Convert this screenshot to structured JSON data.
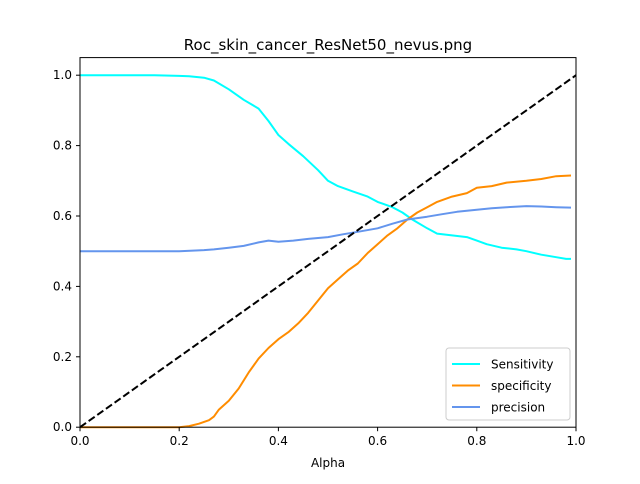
{
  "chart_data": {
    "type": "line",
    "title": "Roc_skin_cancer_ResNet50_nevus.png",
    "xlabel": "Alpha",
    "ylabel": "",
    "xlim": [
      0,
      1
    ],
    "ylim": [
      0,
      1.05
    ],
    "xticks": [
      "0.0",
      "0.2",
      "0.4",
      "0.6",
      "0.8",
      "1.0"
    ],
    "yticks": [
      "0.0",
      "0.2",
      "0.4",
      "0.6",
      "0.8",
      "1.0"
    ],
    "grid": false,
    "legend_position": "lower-right",
    "series": [
      {
        "name": "Sensitivity",
        "color": "#00ffff",
        "dashed": false,
        "x": [
          0.0,
          0.05,
          0.1,
          0.15,
          0.2,
          0.22,
          0.25,
          0.27,
          0.3,
          0.33,
          0.36,
          0.38,
          0.4,
          0.42,
          0.45,
          0.48,
          0.5,
          0.52,
          0.55,
          0.58,
          0.6,
          0.63,
          0.65,
          0.67,
          0.7,
          0.72,
          0.75,
          0.78,
          0.8,
          0.82,
          0.85,
          0.88,
          0.9,
          0.93,
          0.96,
          0.98,
          0.99
        ],
        "y": [
          1.0,
          1.0,
          1.0,
          1.0,
          0.998,
          0.997,
          0.993,
          0.985,
          0.96,
          0.93,
          0.905,
          0.87,
          0.83,
          0.805,
          0.77,
          0.73,
          0.7,
          0.685,
          0.67,
          0.655,
          0.64,
          0.625,
          0.61,
          0.59,
          0.565,
          0.55,
          0.545,
          0.54,
          0.53,
          0.52,
          0.51,
          0.505,
          0.5,
          0.49,
          0.483,
          0.478,
          0.478
        ]
      },
      {
        "name": "specificity",
        "color": "#ff8c00",
        "dashed": false,
        "x": [
          0.0,
          0.05,
          0.1,
          0.15,
          0.2,
          0.22,
          0.24,
          0.26,
          0.27,
          0.28,
          0.3,
          0.32,
          0.34,
          0.36,
          0.38,
          0.4,
          0.42,
          0.44,
          0.46,
          0.48,
          0.5,
          0.52,
          0.54,
          0.56,
          0.58,
          0.6,
          0.62,
          0.64,
          0.66,
          0.68,
          0.7,
          0.72,
          0.75,
          0.78,
          0.8,
          0.83,
          0.86,
          0.9,
          0.93,
          0.96,
          0.99
        ],
        "y": [
          0.0,
          0.0,
          0.0,
          0.0,
          0.0,
          0.003,
          0.01,
          0.02,
          0.03,
          0.05,
          0.075,
          0.11,
          0.155,
          0.195,
          0.225,
          0.25,
          0.27,
          0.295,
          0.325,
          0.36,
          0.395,
          0.42,
          0.445,
          0.465,
          0.495,
          0.52,
          0.545,
          0.565,
          0.59,
          0.61,
          0.625,
          0.64,
          0.655,
          0.665,
          0.68,
          0.685,
          0.695,
          0.7,
          0.705,
          0.713,
          0.715
        ]
      },
      {
        "name": "precision",
        "color": "#6495ed",
        "dashed": false,
        "x": [
          0.0,
          0.05,
          0.1,
          0.15,
          0.2,
          0.25,
          0.27,
          0.3,
          0.33,
          0.36,
          0.38,
          0.4,
          0.43,
          0.46,
          0.5,
          0.53,
          0.56,
          0.6,
          0.63,
          0.66,
          0.7,
          0.73,
          0.76,
          0.8,
          0.83,
          0.86,
          0.9,
          0.93,
          0.96,
          0.99
        ],
        "y": [
          0.5,
          0.5,
          0.5,
          0.5,
          0.5,
          0.503,
          0.505,
          0.51,
          0.515,
          0.525,
          0.53,
          0.527,
          0.53,
          0.535,
          0.54,
          0.548,
          0.555,
          0.565,
          0.578,
          0.59,
          0.598,
          0.605,
          0.612,
          0.618,
          0.622,
          0.625,
          0.628,
          0.627,
          0.625,
          0.624
        ]
      },
      {
        "name": "",
        "color": "#000000",
        "dashed": true,
        "x": [
          0.0,
          1.0
        ],
        "y": [
          0.0,
          1.0
        ]
      }
    ]
  }
}
